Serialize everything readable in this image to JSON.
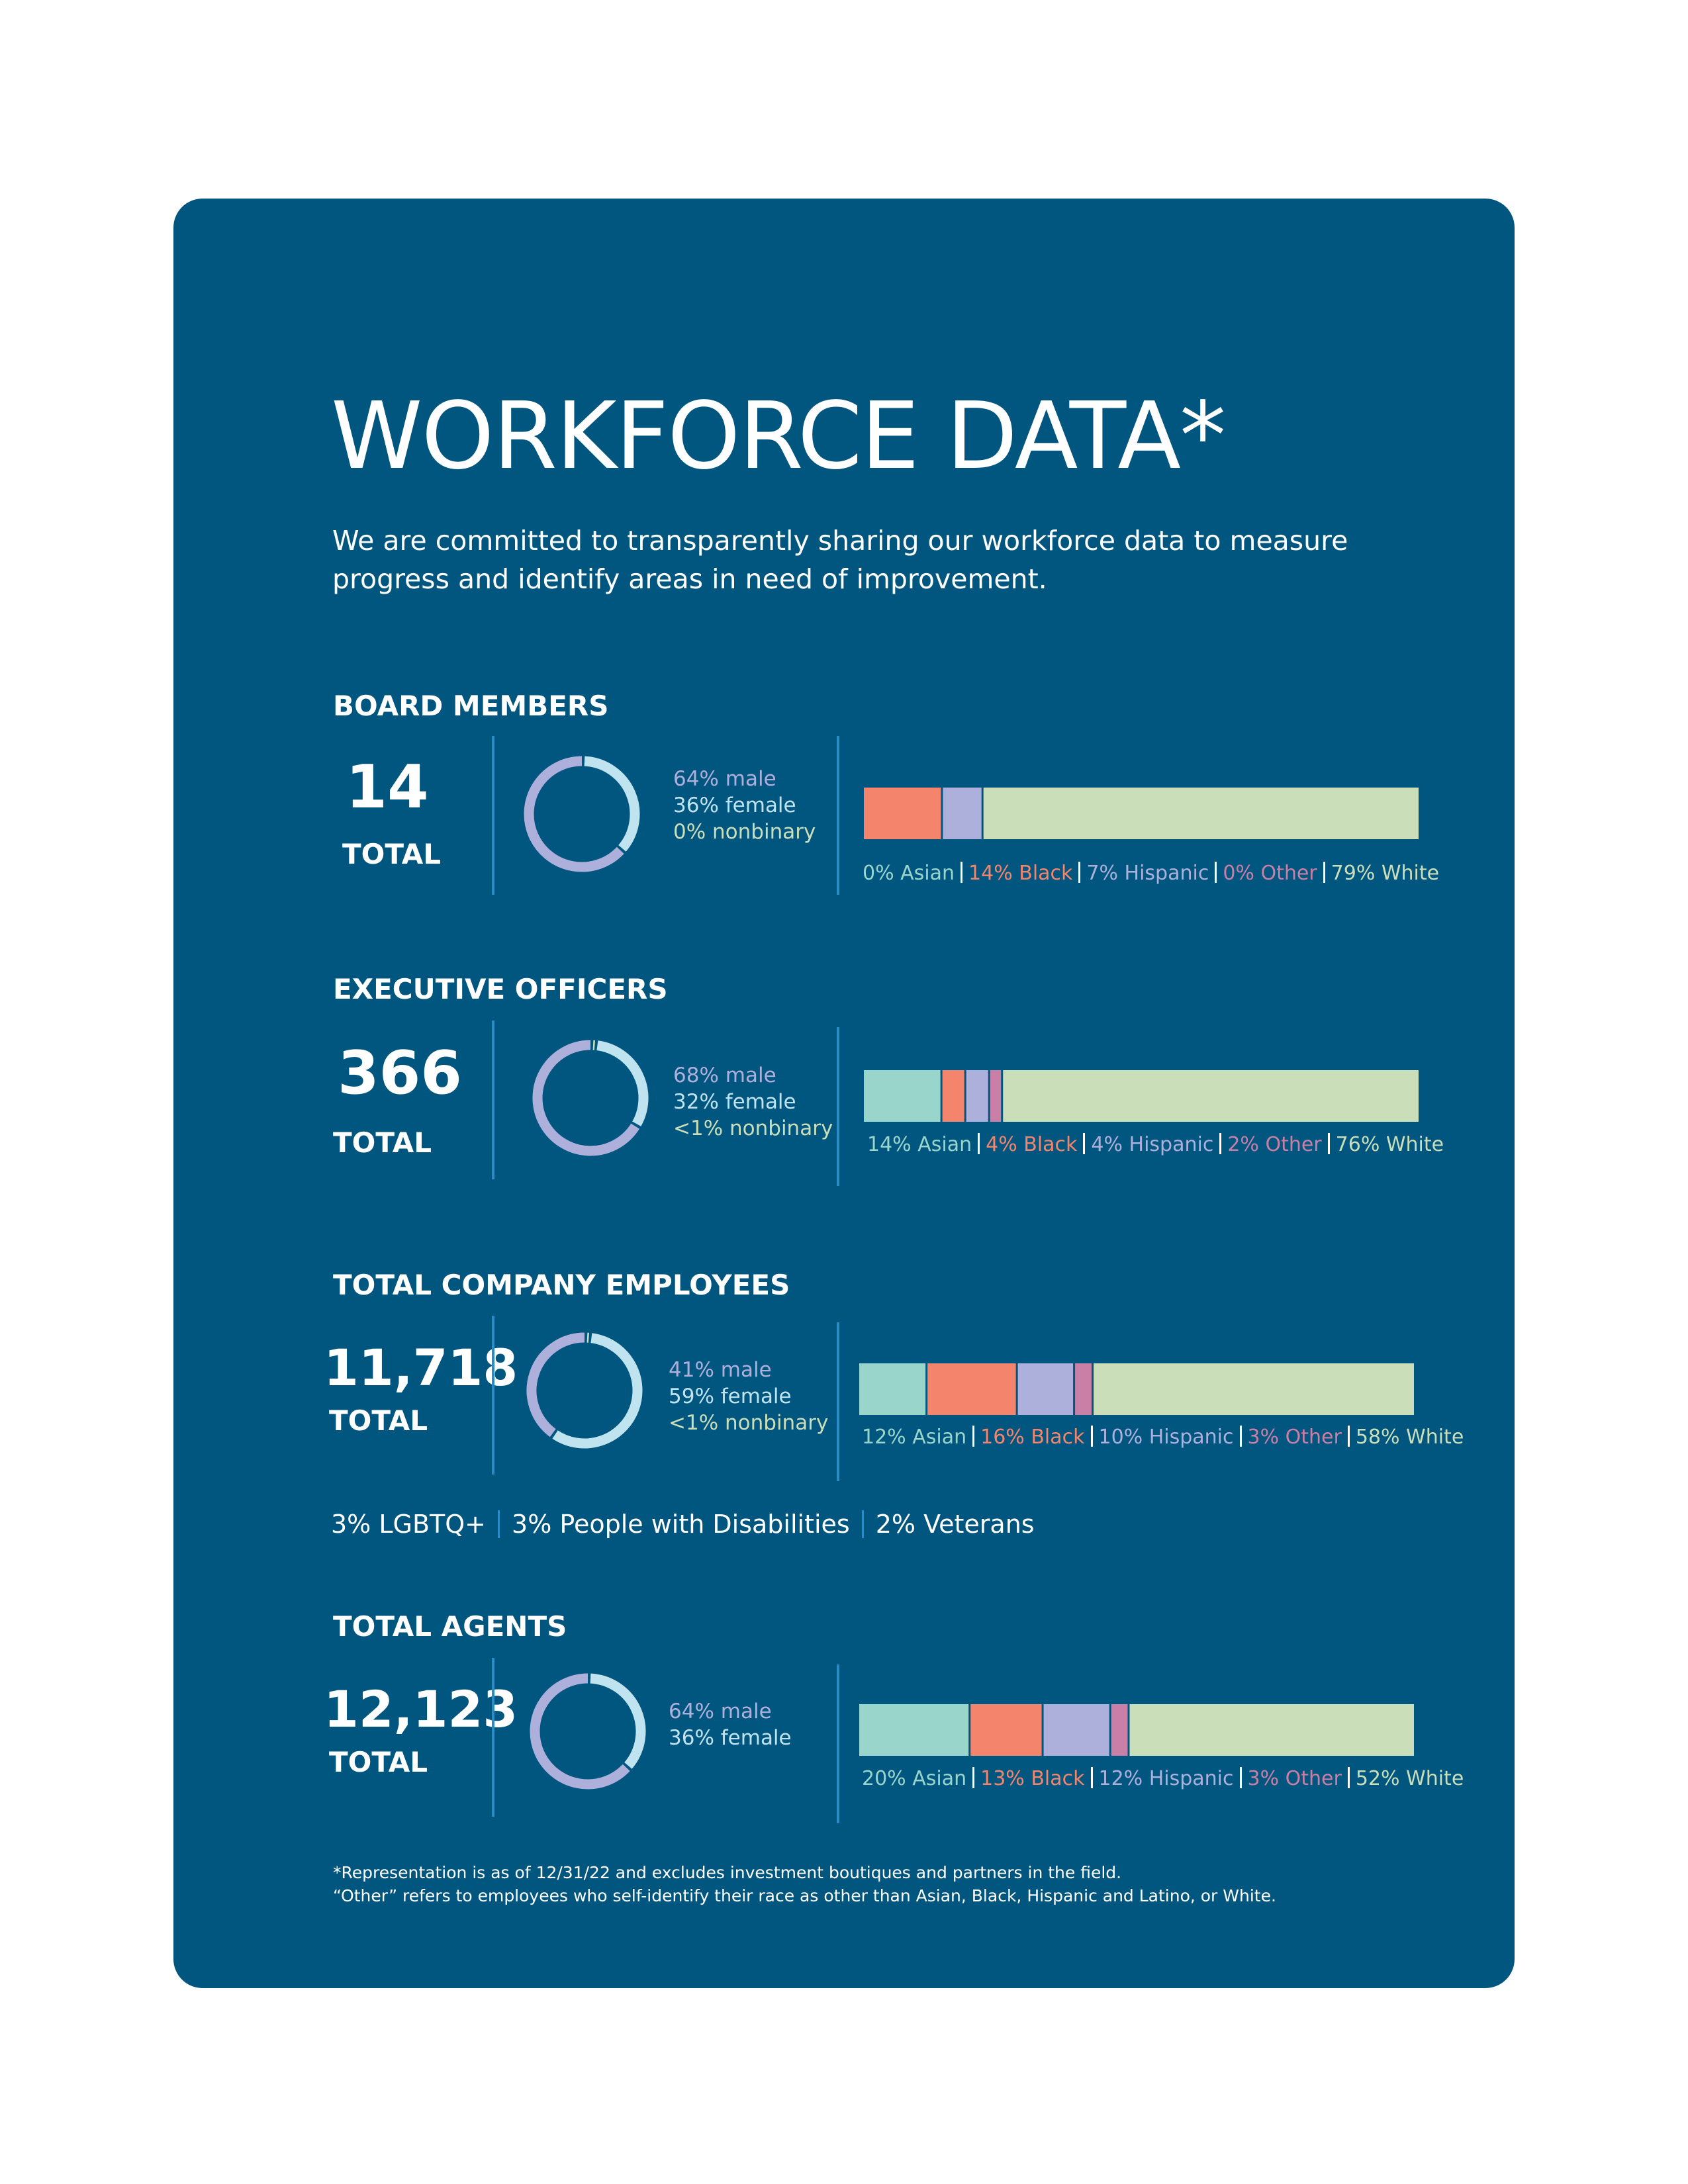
{
  "title": "WORKFORCE DATA*",
  "subtitle": "We are committed to transparently sharing our workforce data to measure progress and identify areas in need of improvement.",
  "colors": {
    "panel": "#00567f",
    "asian": "#9ad5cc",
    "black": "#f4846c",
    "hispanic": "#aeb0dc",
    "other": "#c97fa6",
    "white": "#cadfb9",
    "male": "#aeb0dc",
    "female": "#bfe3ef",
    "nonbinary": "#cadfb9"
  },
  "chart_data": [
    {
      "type": "pie",
      "title": "BOARD MEMBERS",
      "total": "14",
      "total_label": "TOTAL",
      "gender": [
        {
          "key": "male",
          "label": "64% male",
          "value": 64
        },
        {
          "key": "female",
          "label": "36% female",
          "value": 36
        },
        {
          "key": "nonbinary",
          "label": "0% nonbinary",
          "value": 0
        }
      ],
      "race": [
        {
          "key": "asian",
          "label": "0% Asian",
          "value": 0
        },
        {
          "key": "black",
          "label": "14% Black",
          "value": 14
        },
        {
          "key": "hispanic",
          "label": "7% Hispanic",
          "value": 7
        },
        {
          "key": "other",
          "label": "0% Other",
          "value": 0
        },
        {
          "key": "white",
          "label": "79% White",
          "value": 79
        }
      ]
    },
    {
      "type": "pie",
      "title": "EXECUTIVE OFFICERS",
      "total": "366",
      "total_label": "TOTAL",
      "gender": [
        {
          "key": "male",
          "label": "68% male",
          "value": 68
        },
        {
          "key": "female",
          "label": "32% female",
          "value": 32
        },
        {
          "key": "nonbinary",
          "label": "<1% nonbinary",
          "value": 0.5
        }
      ],
      "race": [
        {
          "key": "asian",
          "label": "14% Asian",
          "value": 14
        },
        {
          "key": "black",
          "label": "4% Black",
          "value": 4
        },
        {
          "key": "hispanic",
          "label": "4% Hispanic",
          "value": 4
        },
        {
          "key": "other",
          "label": "2% Other",
          "value": 2
        },
        {
          "key": "white",
          "label": "76% White",
          "value": 76
        }
      ]
    },
    {
      "type": "pie",
      "title": "TOTAL COMPANY EMPLOYEES",
      "total": "11,718",
      "total_label": "TOTAL",
      "gender": [
        {
          "key": "male",
          "label": "41% male",
          "value": 41
        },
        {
          "key": "female",
          "label": "59% female",
          "value": 59
        },
        {
          "key": "nonbinary",
          "label": "<1% nonbinary",
          "value": 0.5
        }
      ],
      "race": [
        {
          "key": "asian",
          "label": "12% Asian",
          "value": 12
        },
        {
          "key": "black",
          "label": "16% Black",
          "value": 16
        },
        {
          "key": "hispanic",
          "label": "10% Hispanic",
          "value": 10
        },
        {
          "key": "other",
          "label": "3% Other",
          "value": 3
        },
        {
          "key": "white",
          "label": "58% White",
          "value": 58
        }
      ]
    },
    {
      "type": "pie",
      "title": "TOTAL AGENTS",
      "total": "12,123",
      "total_label": "TOTAL",
      "gender": [
        {
          "key": "male",
          "label": "64% male",
          "value": 64
        },
        {
          "key": "female",
          "label": "36% female",
          "value": 36
        }
      ],
      "race": [
        {
          "key": "asian",
          "label": "20% Asian",
          "value": 20
        },
        {
          "key": "black",
          "label": "13% Black",
          "value": 13
        },
        {
          "key": "hispanic",
          "label": "12% Hispanic",
          "value": 12
        },
        {
          "key": "other",
          "label": "3% Other",
          "value": 3
        },
        {
          "key": "white",
          "label": "52% White",
          "value": 52
        }
      ]
    }
  ],
  "employee_extras": [
    "3% LGBTQ+",
    "3% People with Disabilities",
    "2% Veterans"
  ],
  "footnotes": [
    "*Representation is as of 12/31/22 and excludes investment boutiques and partners in the field.",
    "“Other” refers to employees who self-identify their race as other than Asian, Black, Hispanic and Latino, or White."
  ]
}
